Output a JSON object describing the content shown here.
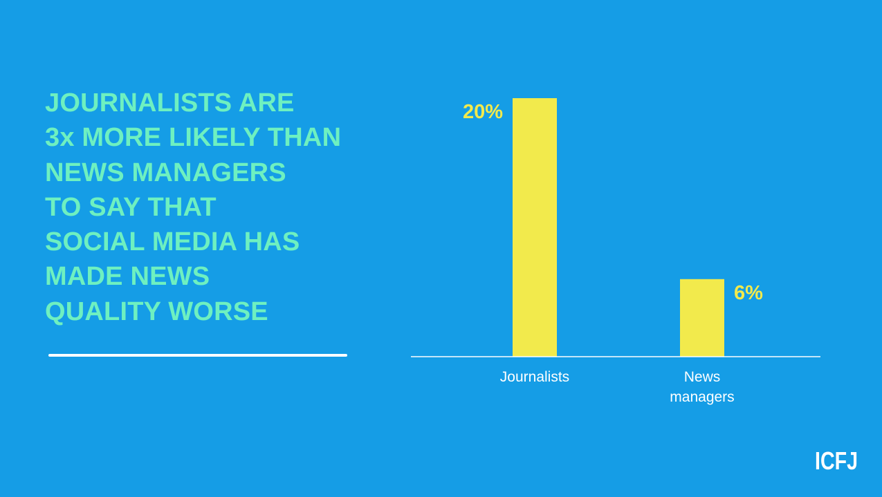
{
  "colors": {
    "background": "#159de6",
    "headline": "#6ef0c0",
    "bar": "#f2ea4c",
    "axis": "#ffffff"
  },
  "headline": {
    "lines": [
      "JOURNALISTS ARE",
      "3x MORE LIKELY THAN",
      "NEWS MANAGERS",
      "TO SAY THAT",
      "SOCIAL MEDIA HAS",
      "MADE NEWS",
      "QUALITY WORSE"
    ]
  },
  "chart_data": {
    "type": "bar",
    "categories": [
      "Journalists",
      "News managers"
    ],
    "category_label_lines": [
      [
        "Journalists"
      ],
      [
        "News",
        "managers"
      ]
    ],
    "values": [
      20,
      6
    ],
    "value_labels": [
      "20%",
      "6%"
    ],
    "value_label_positions": [
      "left",
      "right"
    ],
    "title": "",
    "xlabel": "",
    "ylabel": "",
    "ylim": [
      0,
      20
    ],
    "grid": false,
    "legend": "none"
  },
  "logo": {
    "text": "ICFJ"
  }
}
